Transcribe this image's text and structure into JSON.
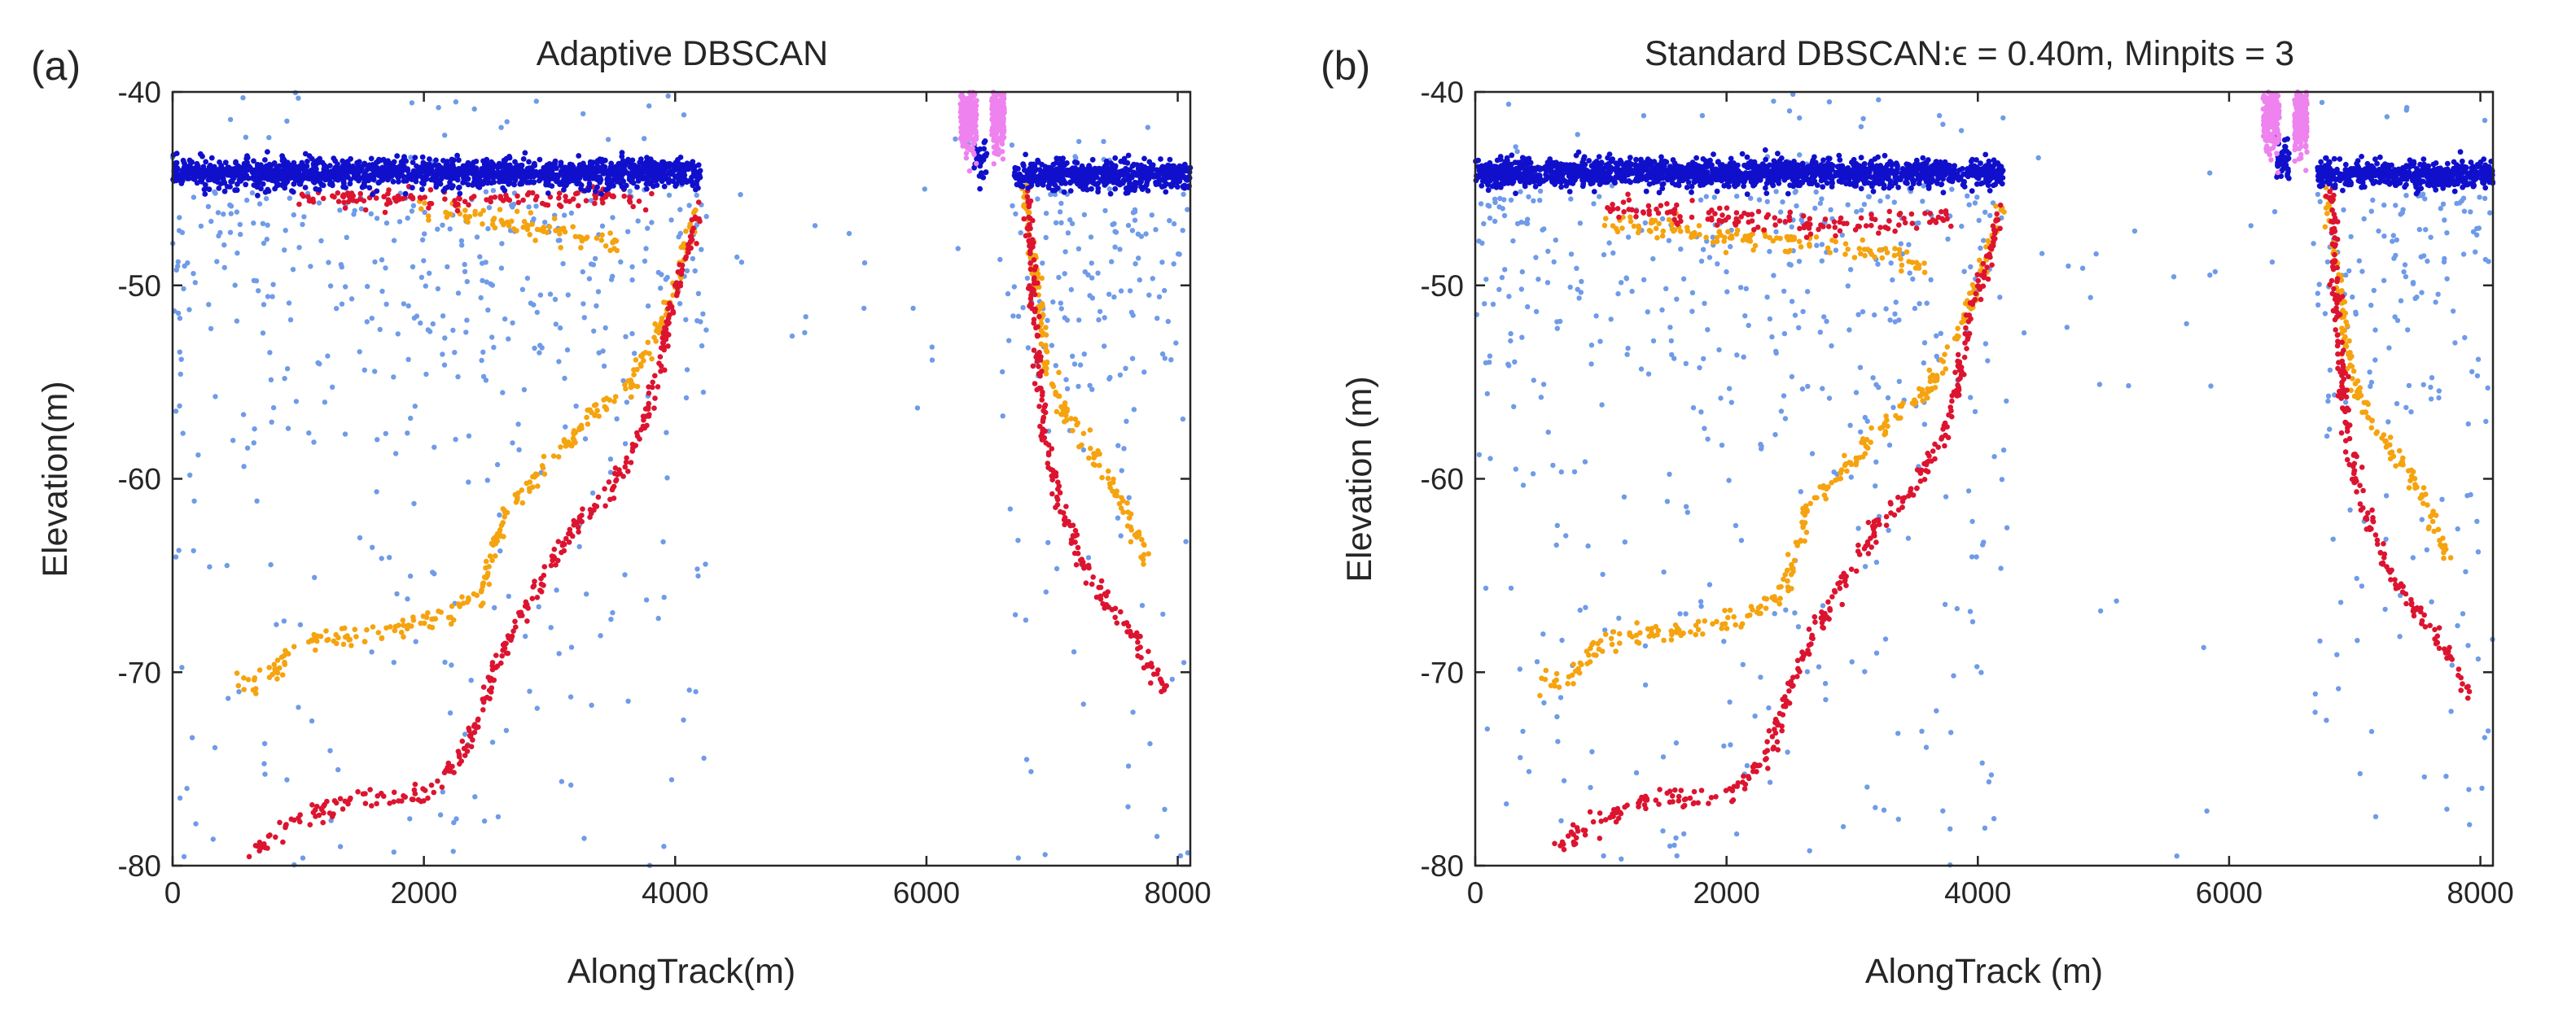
{
  "colors": {
    "surface": "#1010cc",
    "noise": "#6f9be8",
    "signal_orange": "#f5a30f",
    "signal_red": "#dc1430",
    "outlier_pink": "#ee82ee",
    "axis": "#262626"
  },
  "chart_data": [
    {
      "type": "scatter",
      "panel_label": "(a)",
      "title": "Adaptive DBSCAN",
      "xlabel": "AlongTrack(m)",
      "ylabel": "Elevation(m)",
      "xlim": [
        0,
        8100
      ],
      "ylim": [
        -80,
        -40
      ],
      "xticks": [
        0,
        2000,
        4000,
        6000,
        8000
      ],
      "yticks": [
        -80,
        -70,
        -60,
        -50,
        -40
      ],
      "grid": false,
      "legend": "none",
      "clusters": {
        "surface": [
          {
            "x": [
              0,
              4200
            ],
            "y": [
              -44.2,
              -44.2
            ],
            "spread": 0.35
          },
          {
            "x": [
              6700,
              8100
            ],
            "y": [
              -44.3,
              -44.3
            ],
            "spread": 0.35
          },
          {
            "x": [
              6380,
              6480
            ],
            "y": [
              -43.4,
              -43.4
            ],
            "spread": 0.6
          }
        ],
        "outlier_pink": [
          {
            "x": [
              6270,
              6400
            ],
            "y": [
              -41.2,
              -41.2
            ],
            "spread": 1.0
          },
          {
            "x": [
              6520,
              6620
            ],
            "y": [
              -41.2,
              -41.2
            ],
            "spread": 1.0
          }
        ],
        "signal_orange": [
          [
            [
              4180,
              -46
            ],
            [
              4050,
              -49
            ],
            [
              3850,
              -52.5
            ],
            [
              3600,
              -55.5
            ],
            [
              3300,
              -57
            ],
            [
              2950,
              -59.5
            ],
            [
              2650,
              -61.5
            ],
            [
              2450,
              -66
            ],
            [
              2200,
              -67
            ],
            [
              1900,
              -67.5
            ],
            [
              1600,
              -68
            ],
            [
              1000,
              -68.5
            ],
            [
              700,
              -70.5
            ],
            [
              500,
              -70.5
            ]
          ],
          [
            [
              6780,
              -45
            ],
            [
              6850,
              -48.5
            ],
            [
              6900,
              -51
            ],
            [
              6950,
              -54
            ],
            [
              7050,
              -56
            ],
            [
              7300,
              -58.5
            ],
            [
              7550,
              -61
            ],
            [
              7750,
              -64
            ]
          ],
          [
            [
              1950,
              -46
            ],
            [
              2900,
              -47
            ],
            [
              3600,
              -48
            ]
          ]
        ],
        "signal_red": [
          [
            [
              4180,
              -46
            ],
            [
              4100,
              -48.5
            ],
            [
              3950,
              -51.5
            ],
            [
              3850,
              -55
            ],
            [
              3700,
              -58
            ],
            [
              3500,
              -60.5
            ],
            [
              3200,
              -62.5
            ],
            [
              2950,
              -65
            ],
            [
              2700,
              -68
            ],
            [
              2550,
              -70
            ],
            [
              2400,
              -73
            ],
            [
              2250,
              -75
            ],
            [
              1950,
              -76.5
            ],
            [
              1500,
              -76.5
            ],
            [
              1200,
              -77
            ],
            [
              900,
              -78
            ],
            [
              600,
              -79.5
            ]
          ],
          [
            [
              6800,
              -45
            ],
            [
              6830,
              -48
            ],
            [
              6860,
              -52
            ],
            [
              6900,
              -55
            ],
            [
              6950,
              -58
            ],
            [
              7050,
              -61
            ],
            [
              7250,
              -64.5
            ],
            [
              7500,
              -67
            ],
            [
              7700,
              -68.5
            ],
            [
              7900,
              -71
            ]
          ],
          [
            [
              1000,
              -45.5
            ],
            [
              2500,
              -45.5
            ],
            [
              3800,
              -45.5
            ]
          ]
        ],
        "noise_count": 950,
        "noise_density_top": 0.55
      }
    },
    {
      "type": "scatter",
      "panel_label": "(b)",
      "title": "Standard DBSCAN:ϵ = 0.40m, Minpits = 3",
      "xlabel": "AlongTrack (m)",
      "ylabel": "Elevation (m)",
      "xlim": [
        0,
        8100
      ],
      "ylim": [
        -80,
        -40
      ],
      "xticks": [
        0,
        2000,
        4000,
        6000,
        8000
      ],
      "yticks": [
        -80,
        -70,
        -60,
        -50,
        -40
      ],
      "grid": false,
      "legend": "none",
      "clusters": {
        "surface": [
          {
            "x": [
              0,
              4200
            ],
            "y": [
              -44.2,
              -44.2
            ],
            "spread": 0.35
          },
          {
            "x": [
              6700,
              8100
            ],
            "y": [
              -44.3,
              -44.3
            ],
            "spread": 0.35
          },
          {
            "x": [
              6380,
              6480
            ],
            "y": [
              -43.4,
              -43.4
            ],
            "spread": 0.6
          }
        ],
        "outlier_pink": [
          {
            "x": [
              6270,
              6400
            ],
            "y": [
              -41.2,
              -41.2
            ],
            "spread": 1.0
          },
          {
            "x": [
              6520,
              6620
            ],
            "y": [
              -41.2,
              -41.2
            ],
            "spread": 1.0
          }
        ],
        "signal_orange": [
          [
            [
              4180,
              -46
            ],
            [
              4050,
              -49
            ],
            [
              3850,
              -52.5
            ],
            [
              3600,
              -55.5
            ],
            [
              3300,
              -57
            ],
            [
              2950,
              -59.5
            ],
            [
              2650,
              -61.5
            ],
            [
              2450,
              -66
            ],
            [
              2200,
              -67
            ],
            [
              1900,
              -67.5
            ],
            [
              1600,
              -68
            ],
            [
              1000,
              -68.5
            ],
            [
              700,
              -70.5
            ],
            [
              500,
              -70.5
            ]
          ],
          [
            [
              6780,
              -45
            ],
            [
              6850,
              -48.5
            ],
            [
              6900,
              -51
            ],
            [
              6950,
              -54
            ],
            [
              7050,
              -56
            ],
            [
              7300,
              -58.5
            ],
            [
              7550,
              -61
            ],
            [
              7750,
              -64
            ]
          ],
          [
            [
              1000,
              -46.5
            ],
            [
              2000,
              -47.5
            ],
            [
              3000,
              -48
            ],
            [
              3600,
              -49
            ]
          ]
        ],
        "signal_red": [
          [
            [
              4180,
              -46
            ],
            [
              4100,
              -48.5
            ],
            [
              3950,
              -51.5
            ],
            [
              3850,
              -55
            ],
            [
              3700,
              -58
            ],
            [
              3500,
              -60.5
            ],
            [
              3200,
              -62.5
            ],
            [
              2950,
              -65
            ],
            [
              2700,
              -68
            ],
            [
              2550,
              -70
            ],
            [
              2400,
              -73
            ],
            [
              2250,
              -75
            ],
            [
              1950,
              -76.5
            ],
            [
              1500,
              -76.5
            ],
            [
              1200,
              -77
            ],
            [
              900,
              -78
            ],
            [
              600,
              -79.5
            ]
          ],
          [
            [
              6800,
              -45
            ],
            [
              6830,
              -48
            ],
            [
              6860,
              -52
            ],
            [
              6900,
              -55
            ],
            [
              6950,
              -58
            ],
            [
              7050,
              -61
            ],
            [
              7250,
              -64.5
            ],
            [
              7500,
              -67
            ],
            [
              7700,
              -68.5
            ],
            [
              7900,
              -71
            ]
          ],
          [
            [
              1000,
              -46
            ],
            [
              2000,
              -46.5
            ],
            [
              3000,
              -47
            ],
            [
              3800,
              -46.5
            ]
          ]
        ],
        "noise_count": 950,
        "noise_density_top": 0.55
      }
    }
  ]
}
